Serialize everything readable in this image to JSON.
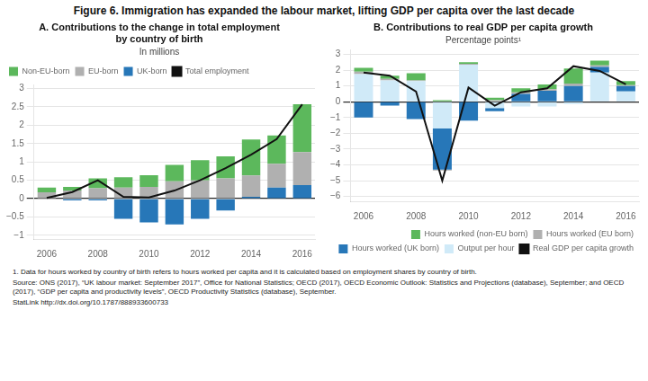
{
  "title": "Figure 6. Immigration has expanded the labour market, lifting GDP per capita over the last decade",
  "annotations": [
    "1. Data for hours worked by country of birth refers to hours worked per capita and it is calculated based on employment shares by country of birth.",
    "Source: ONS (2017), “UK labour market: September 2017”, Office for National Statistics; OECD (2017), OECD Economic Outlook: Statistics and Projections (database), September; and OECD (2017), “GDP per capita and productivity levels”, OECD Productivity Statistics (database), September.",
    "StatLink http://dx.doi.org/10.1787/888933600733"
  ],
  "chart_data": [
    {
      "type": "bar",
      "stacked": true,
      "title": "A. Contributions to the change in total employment\nby country of birth",
      "subtitle": "In millions",
      "categories": [
        "2006",
        null,
        "2008",
        null,
        "2010",
        null,
        "2012",
        null,
        "2014",
        null,
        "2016"
      ],
      "series": [
        {
          "name": "Non-EU-born",
          "color": "#5cb85c",
          "values": [
            0.13,
            0.1,
            0.27,
            0.28,
            0.32,
            0.45,
            0.55,
            0.6,
            0.98,
            0.77,
            1.3
          ]
        },
        {
          "name": "EU-born",
          "color": "#b0b0b0",
          "values": [
            0.17,
            0.22,
            0.28,
            0.3,
            0.32,
            0.47,
            0.5,
            0.55,
            0.58,
            0.65,
            0.9
          ]
        },
        {
          "name": "UK-born",
          "color": "#2777b8",
          "values": [
            0.0,
            -0.05,
            -0.05,
            -0.55,
            -0.65,
            -0.7,
            -0.55,
            -0.32,
            0.05,
            0.3,
            0.37
          ]
        },
        {
          "name": "Total employment",
          "type": "line",
          "color": "#111111",
          "values": [
            0.02,
            0.18,
            0.5,
            0.05,
            0.03,
            0.22,
            0.5,
            0.83,
            1.2,
            1.62,
            2.57
          ]
        }
      ],
      "ylim": [
        -1.1,
        3.1
      ],
      "yticks": [
        {
          "value": -1,
          "label": "−1"
        },
        {
          "value": -0.5,
          "label": "−0.5"
        },
        0,
        0.5,
        1,
        1.5,
        2,
        2.5,
        3
      ],
      "grid": "y",
      "legend": "upper left"
    },
    {
      "type": "bar",
      "stacked": true,
      "title": "B. Contributions to real GDP per capita growth",
      "subtitle": "Percentage points¹",
      "categories": [
        "2006",
        null,
        "2008",
        null,
        "2010",
        null,
        "2012",
        null,
        "2014",
        null,
        "2016"
      ],
      "series": [
        {
          "name": "Hours worked (non-EU born)",
          "color": "#5cb85c",
          "values": [
            0.25,
            0.2,
            0.45,
            0.1,
            0.1,
            0.15,
            0.25,
            0.3,
            0.95,
            0.3,
            0.25
          ]
        },
        {
          "name": "Hours worked (EU born)",
          "color": "#b0b0b0",
          "values": [
            0.15,
            0.1,
            0.05,
            -0.05,
            0.05,
            0.1,
            0.1,
            0.1,
            0.15,
            0.1,
            0.05
          ]
        },
        {
          "name": "Hours worked (UK born)",
          "color": "#2777b8",
          "values": [
            -1.0,
            -0.25,
            -1.1,
            -2.6,
            -1.2,
            -0.2,
            0.5,
            0.7,
            1.0,
            0.35,
            0.35
          ]
        },
        {
          "name": "Output per hour",
          "color": "#d0eaf8",
          "values": [
            1.75,
            1.35,
            1.3,
            -1.7,
            2.35,
            -0.4,
            -0.3,
            -0.3,
            -0.15,
            1.85,
            0.65
          ]
        },
        {
          "name": "Real GDP per capita growth",
          "type": "line",
          "color": "#111111",
          "values": [
            1.85,
            1.65,
            0.65,
            -5.0,
            0.9,
            -0.25,
            0.6,
            0.85,
            2.25,
            1.95,
            1.1
          ]
        }
      ],
      "ylim": [
        -6.3,
        3.3
      ],
      "yticks": [
        {
          "value": -6,
          "label": "−6"
        },
        {
          "value": -5,
          "label": "−5"
        },
        {
          "value": -4,
          "label": "−4"
        },
        {
          "value": -3,
          "label": "−3"
        },
        {
          "value": -2,
          "label": "−2"
        },
        {
          "value": -1,
          "label": "−1"
        },
        0,
        1,
        2,
        3
      ],
      "grid": "y",
      "legend": "lower right"
    }
  ]
}
